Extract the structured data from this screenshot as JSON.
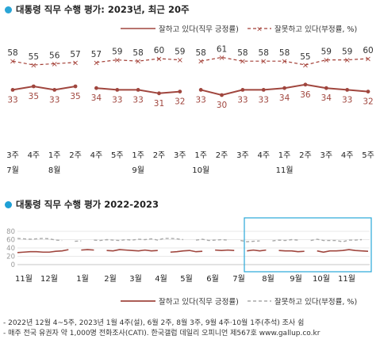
{
  "chart_data": [
    {
      "type": "line",
      "title": "대통령 직무 수행 평가: 2023년, 최근 20주",
      "legend_position": "top-right",
      "grid": false,
      "colors": {
        "positive": "#a0463e",
        "negative": "#a33f36"
      },
      "x_ticks": [
        {
          "week": "3주",
          "month": "7월"
        },
        {
          "week": "4주",
          "month": ""
        },
        {
          "week": "1주",
          "month": "8월"
        },
        {
          "week": "2주",
          "month": ""
        },
        {
          "week": "4주",
          "month": ""
        },
        {
          "week": "5주",
          "month": ""
        },
        {
          "week": "1주",
          "month": "9월"
        },
        {
          "week": "2주",
          "month": ""
        },
        {
          "week": "3주",
          "month": ""
        },
        {
          "week": "1주",
          "month": "10월"
        },
        {
          "week": "2주",
          "month": ""
        },
        {
          "week": "3주",
          "month": ""
        },
        {
          "week": "4주",
          "month": ""
        },
        {
          "week": "1주",
          "month": "11월"
        },
        {
          "week": "2주",
          "month": ""
        },
        {
          "week": "3주",
          "month": ""
        },
        {
          "week": "4주",
          "month": ""
        },
        {
          "week": "5주",
          "month": ""
        }
      ],
      "segments": [
        [
          0,
          3
        ],
        [
          4,
          8
        ],
        [
          9,
          17
        ]
      ],
      "series": [
        {
          "name": "잘하고 있다(직무 긍정률)",
          "style": "solid",
          "values": [
            33,
            35,
            33,
            35,
            34,
            33,
            33,
            31,
            32,
            33,
            30,
            33,
            33,
            34,
            36,
            34,
            33,
            32
          ]
        },
        {
          "name": "잘못하고 있다(부정률, %)",
          "style": "dashed",
          "values": [
            58,
            55,
            56,
            57,
            57,
            59,
            58,
            60,
            59,
            58,
            61,
            58,
            58,
            58,
            55,
            59,
            59,
            60
          ]
        }
      ]
    },
    {
      "type": "line",
      "title": "대통령 직무 수행 평가 2022-2023",
      "legend_position": "bottom-right",
      "grid": true,
      "y_ticks": [
        0,
        20,
        40,
        60,
        80
      ],
      "ylim": [
        0,
        80
      ],
      "x_labels": [
        "11월",
        "12월",
        "1월",
        "2월",
        "3월",
        "4월",
        "5월",
        "6월",
        "7월",
        "8월",
        "9월",
        "10월",
        "11월"
      ],
      "highlight_box": {
        "from": "7월",
        "to": "11월"
      },
      "colors": {
        "positive": "#a0463e",
        "negative": "#a8a8a8",
        "highlight": "#29a8d8",
        "title_dot": "#1fa0d6"
      },
      "series": [
        {
          "name": "잘하고 있다(직무 긍정률)",
          "style": "solid",
          "values": [
            29,
            30,
            31,
            31,
            30,
            30,
            32,
            33,
            36,
            null,
            35,
            36,
            35,
            null,
            34,
            33,
            36,
            35,
            34,
            33,
            35,
            33,
            34,
            null,
            30,
            31,
            33,
            34,
            31,
            32,
            null,
            35,
            34,
            35,
            34,
            null,
            33,
            35,
            33,
            35,
            null,
            34,
            33,
            33,
            31,
            32,
            null,
            33,
            30,
            33,
            33,
            34,
            36,
            34,
            33,
            32
          ]
        },
        {
          "name": "잘못하고 있다(부정률, %)",
          "style": "dashed",
          "values": [
            63,
            62,
            61,
            62,
            63,
            62,
            59,
            58,
            null,
            56,
            57,
            null,
            59,
            58,
            60,
            59,
            58,
            60,
            59,
            61,
            60,
            62,
            59,
            63,
            63,
            62,
            60,
            null,
            59,
            61,
            58,
            59,
            60,
            59,
            null,
            58,
            55,
            56,
            57,
            null,
            57,
            59,
            58,
            60,
            59,
            null,
            58,
            61,
            58,
            58,
            58,
            55,
            59,
            59,
            60
          ]
        }
      ]
    }
  ],
  "notes": [
    "- 2022년 12월 4~5주, 2023년 1월 4주(설), 6월 2주, 8월 3주, 9월 4주·10월 1주(추석) 조사 쉼",
    "- 매주 전국 유권자 약 1,000명 전화조사(CATI). 한국갤럽 데일리 오피니언 제567호 www.gallup.co.kr"
  ]
}
